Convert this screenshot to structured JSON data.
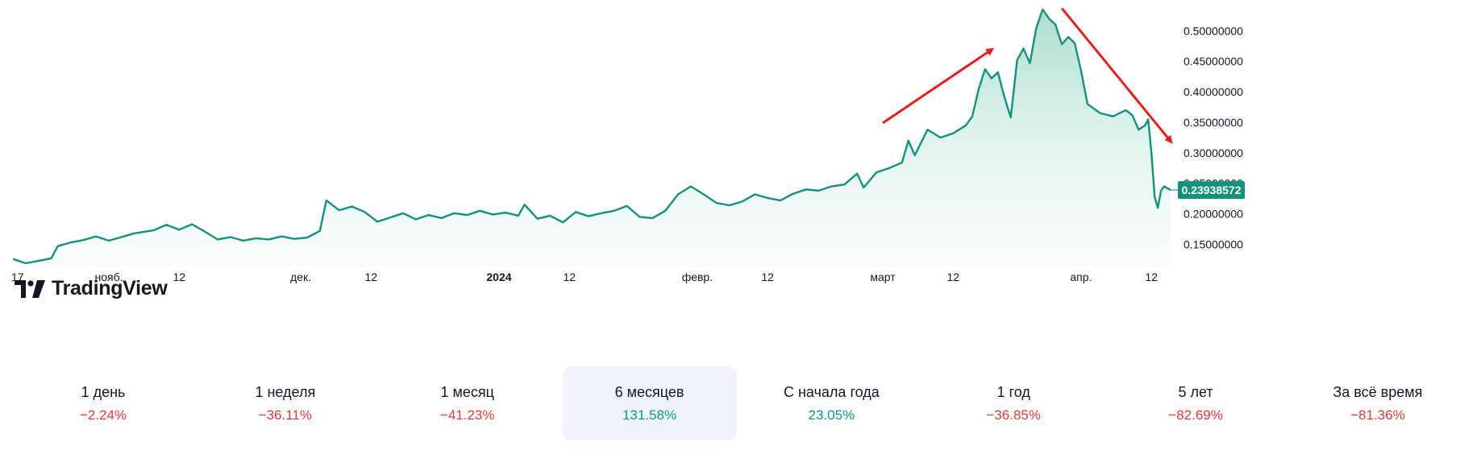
{
  "brand": {
    "name": "TradingView"
  },
  "colors": {
    "line": "#14917a",
    "fill_top": "#8fd3c0",
    "negative": "#e03a3a",
    "positive": "#089981",
    "price_tag": "#14917a",
    "arrow": "#e02020"
  },
  "chart_data": {
    "type": "area",
    "current_price": "0.23938572",
    "y_ticks": [
      "0.50000000",
      "0.45000000",
      "0.40000000",
      "0.35000000",
      "0.30000000",
      "0.25000000",
      "0.20000000",
      "0.15000000"
    ],
    "y_tick_values": [
      0.5,
      0.45,
      0.4,
      0.35,
      0.3,
      0.25,
      0.2,
      0.15
    ],
    "ylim": [
      0.115,
      0.54
    ],
    "x_ticks": [
      {
        "label": "17",
        "day": 0
      },
      {
        "label": "нояб.",
        "day": 15
      },
      {
        "label": "12",
        "day": 26
      },
      {
        "label": "дек.",
        "day": 45
      },
      {
        "label": "12",
        "day": 56
      },
      {
        "label": "2024",
        "day": 76,
        "bold": true
      },
      {
        "label": "12",
        "day": 87
      },
      {
        "label": "февр.",
        "day": 107
      },
      {
        "label": "12",
        "day": 118
      },
      {
        "label": "март",
        "day": 136
      },
      {
        "label": "12",
        "day": 147
      },
      {
        "label": "апр.",
        "day": 167
      },
      {
        "label": "12",
        "day": 178
      }
    ],
    "x_range": [
      0,
      181
    ],
    "points": [
      [
        0,
        0.126
      ],
      [
        2,
        0.119
      ],
      [
        4,
        0.123
      ],
      [
        6,
        0.127
      ],
      [
        7,
        0.147
      ],
      [
        9,
        0.153
      ],
      [
        11,
        0.157
      ],
      [
        13,
        0.163
      ],
      [
        15,
        0.156
      ],
      [
        17,
        0.162
      ],
      [
        19,
        0.168
      ],
      [
        22,
        0.173
      ],
      [
        24,
        0.182
      ],
      [
        26,
        0.174
      ],
      [
        28,
        0.183
      ],
      [
        30,
        0.171
      ],
      [
        32,
        0.158
      ],
      [
        34,
        0.162
      ],
      [
        36,
        0.156
      ],
      [
        38,
        0.16
      ],
      [
        40,
        0.158
      ],
      [
        42,
        0.163
      ],
      [
        44,
        0.159
      ],
      [
        46,
        0.161
      ],
      [
        48,
        0.172
      ],
      [
        49,
        0.222
      ],
      [
        51,
        0.206
      ],
      [
        53,
        0.212
      ],
      [
        55,
        0.203
      ],
      [
        57,
        0.187
      ],
      [
        59,
        0.194
      ],
      [
        61,
        0.201
      ],
      [
        63,
        0.191
      ],
      [
        65,
        0.198
      ],
      [
        67,
        0.193
      ],
      [
        69,
        0.201
      ],
      [
        71,
        0.198
      ],
      [
        73,
        0.205
      ],
      [
        75,
        0.199
      ],
      [
        77,
        0.202
      ],
      [
        79,
        0.197
      ],
      [
        80,
        0.215
      ],
      [
        82,
        0.192
      ],
      [
        84,
        0.197
      ],
      [
        86,
        0.186
      ],
      [
        88,
        0.203
      ],
      [
        90,
        0.196
      ],
      [
        92,
        0.201
      ],
      [
        94,
        0.205
      ],
      [
        96,
        0.213
      ],
      [
        98,
        0.195
      ],
      [
        100,
        0.193
      ],
      [
        102,
        0.205
      ],
      [
        104,
        0.232
      ],
      [
        106,
        0.245
      ],
      [
        108,
        0.232
      ],
      [
        110,
        0.218
      ],
      [
        112,
        0.214
      ],
      [
        114,
        0.22
      ],
      [
        116,
        0.232
      ],
      [
        118,
        0.226
      ],
      [
        120,
        0.222
      ],
      [
        122,
        0.233
      ],
      [
        124,
        0.24
      ],
      [
        126,
        0.238
      ],
      [
        128,
        0.245
      ],
      [
        130,
        0.248
      ],
      [
        132,
        0.266
      ],
      [
        133,
        0.243
      ],
      [
        135,
        0.268
      ],
      [
        137,
        0.275
      ],
      [
        139,
        0.284
      ],
      [
        140,
        0.32
      ],
      [
        141,
        0.296
      ],
      [
        143,
        0.338
      ],
      [
        145,
        0.325
      ],
      [
        147,
        0.332
      ],
      [
        149,
        0.345
      ],
      [
        150,
        0.36
      ],
      [
        151,
        0.405
      ],
      [
        152,
        0.437
      ],
      [
        153,
        0.422
      ],
      [
        154,
        0.432
      ],
      [
        155,
        0.392
      ],
      [
        156,
        0.358
      ],
      [
        157,
        0.452
      ],
      [
        158,
        0.471
      ],
      [
        159,
        0.447
      ],
      [
        160,
        0.505
      ],
      [
        161,
        0.535
      ],
      [
        162,
        0.52
      ],
      [
        163,
        0.51
      ],
      [
        164,
        0.478
      ],
      [
        165,
        0.49
      ],
      [
        166,
        0.48
      ],
      [
        167,
        0.435
      ],
      [
        168,
        0.38
      ],
      [
        170,
        0.365
      ],
      [
        172,
        0.36
      ],
      [
        174,
        0.37
      ],
      [
        175,
        0.362
      ],
      [
        176,
        0.338
      ],
      [
        177,
        0.345
      ],
      [
        177.5,
        0.355
      ],
      [
        178,
        0.3
      ],
      [
        178.5,
        0.228
      ],
      [
        179,
        0.21
      ],
      [
        179.5,
        0.238
      ],
      [
        180,
        0.245
      ],
      [
        180.5,
        0.242
      ],
      [
        181,
        0.239
      ]
    ]
  },
  "annotations": {
    "up_arrow": {
      "from": {
        "day": 136,
        "price": 0.349
      },
      "to": {
        "day": 153,
        "price": 0.469
      }
    },
    "down_arrow": {
      "from": {
        "day": 164,
        "price": 0.537
      },
      "to": {
        "day": 181,
        "price": 0.319
      }
    }
  },
  "periods": [
    {
      "label": "1 день",
      "change": "−2.24%",
      "positive": false,
      "active": false
    },
    {
      "label": "1 неделя",
      "change": "−36.11%",
      "positive": false,
      "active": false
    },
    {
      "label": "1 месяц",
      "change": "−41.23%",
      "positive": false,
      "active": false
    },
    {
      "label": "6 месяцев",
      "change": "131.58%",
      "positive": true,
      "active": true
    },
    {
      "label": "С начала года",
      "change": "23.05%",
      "positive": true,
      "active": false
    },
    {
      "label": "1 год",
      "change": "−36.85%",
      "positive": false,
      "active": false
    },
    {
      "label": "5 лет",
      "change": "−82.69%",
      "positive": false,
      "active": false
    },
    {
      "label": "За всё время",
      "change": "−81.36%",
      "positive": false,
      "active": false
    }
  ]
}
